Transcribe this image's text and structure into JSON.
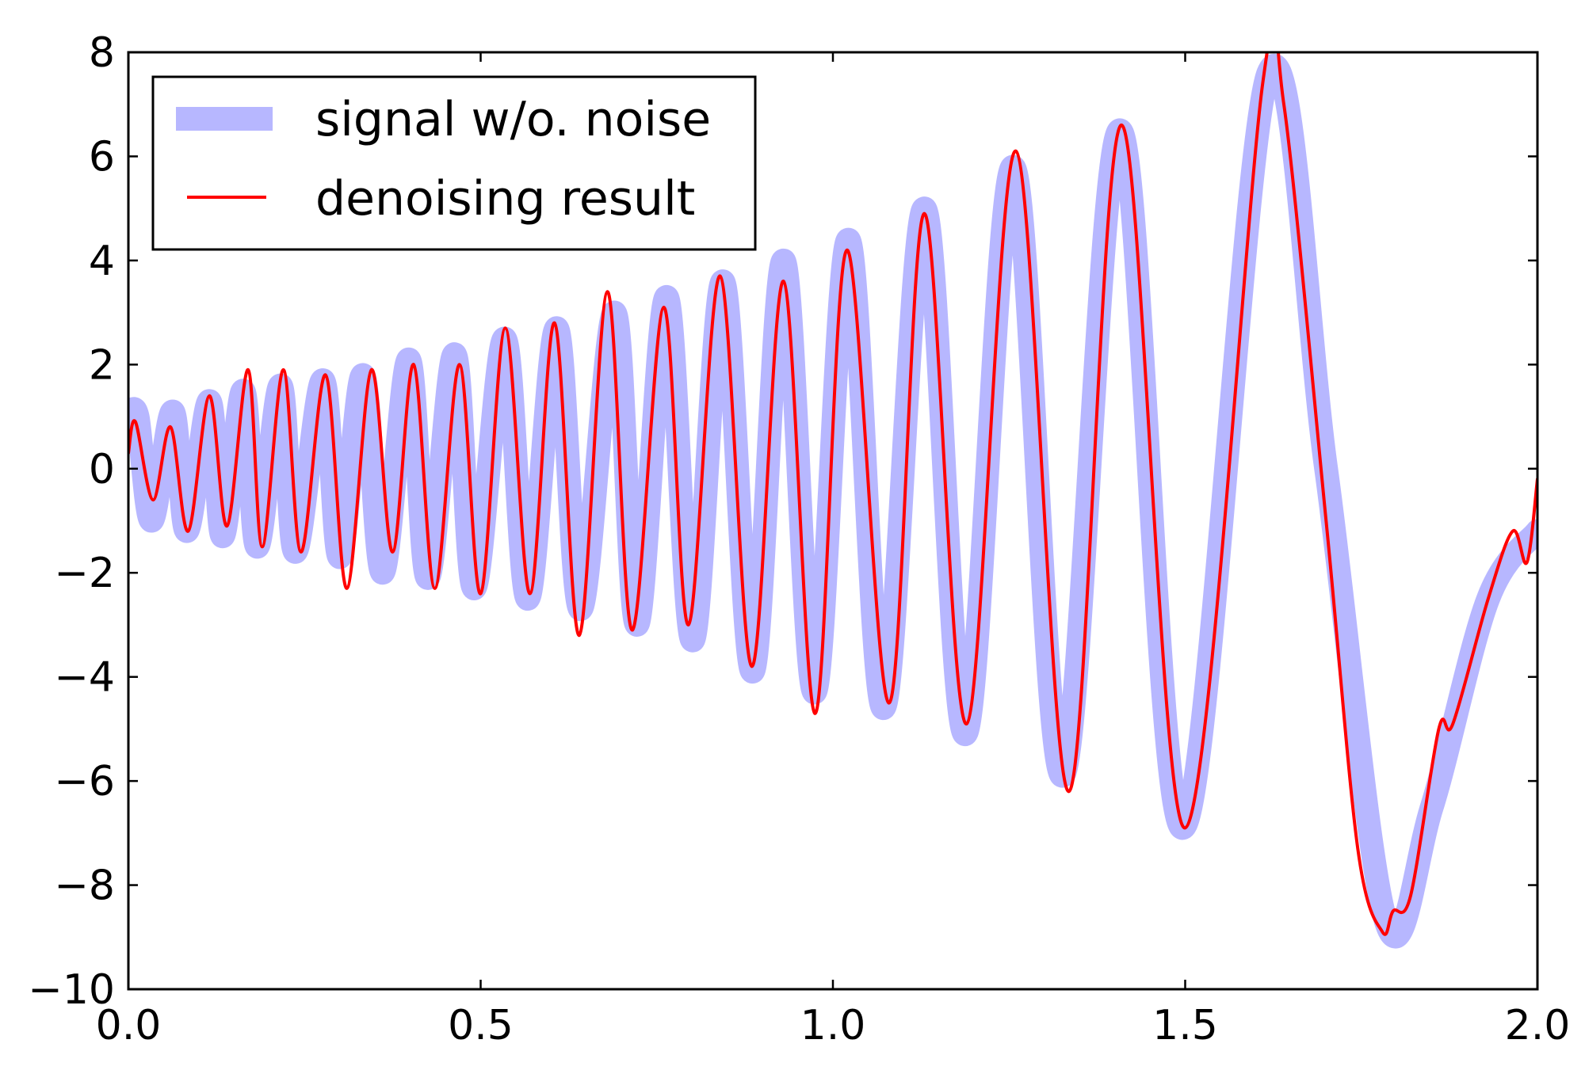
{
  "chart_data": {
    "type": "line",
    "title": "",
    "xlabel": "",
    "ylabel": "",
    "xlim": [
      0.0,
      2.0
    ],
    "ylim": [
      -10,
      8
    ],
    "x_ticks": [
      0.0,
      0.5,
      1.0,
      1.5,
      2.0
    ],
    "x_tick_labels": [
      "0.0",
      "0.5",
      "1.0",
      "1.5",
      "2.0"
    ],
    "y_ticks": [
      -10,
      -8,
      -6,
      -4,
      -2,
      0,
      2,
      4,
      6,
      8
    ],
    "y_tick_labels": [
      "−10",
      "−8",
      "−6",
      "−4",
      "−2",
      "0",
      "2",
      "4",
      "6",
      "8"
    ],
    "grid": false,
    "legend_position": "top-left",
    "series": [
      {
        "name": "signal w/o. noise",
        "color": "#aaaaff",
        "style": "thick-translucent",
        "x": [
          0.0,
          0.013,
          0.033,
          0.063,
          0.083,
          0.115,
          0.134,
          0.163,
          0.183,
          0.216,
          0.237,
          0.276,
          0.3,
          0.333,
          0.361,
          0.398,
          0.425,
          0.463,
          0.491,
          0.534,
          0.567,
          0.608,
          0.642,
          0.69,
          0.722,
          0.764,
          0.801,
          0.844,
          0.886,
          0.93,
          0.974,
          1.022,
          1.072,
          1.13,
          1.188,
          1.256,
          1.326,
          1.408,
          1.497,
          1.618,
          1.7,
          1.785,
          1.85,
          1.93,
          2.0
        ],
        "y": [
          1.0,
          1.0,
          -1.0,
          1.1,
          -1.2,
          1.3,
          -1.3,
          1.5,
          -1.5,
          1.6,
          -1.6,
          1.7,
          -1.7,
          1.8,
          -2.0,
          2.1,
          -2.1,
          2.2,
          -2.3,
          2.5,
          -2.5,
          2.7,
          -2.7,
          3.0,
          -3.0,
          3.3,
          -3.3,
          3.6,
          -3.9,
          4.0,
          -4.3,
          4.4,
          -4.6,
          5.0,
          -5.1,
          5.8,
          -5.9,
          6.5,
          -6.9,
          7.6,
          0.0,
          -8.7,
          -6.5,
          -2.5,
          -1.2
        ]
      },
      {
        "name": "denoising result",
        "color": "#ff0000",
        "style": "thin",
        "x": [
          0.0,
          0.01,
          0.035,
          0.06,
          0.085,
          0.115,
          0.14,
          0.17,
          0.19,
          0.22,
          0.245,
          0.28,
          0.31,
          0.345,
          0.375,
          0.405,
          0.435,
          0.47,
          0.5,
          0.535,
          0.57,
          0.605,
          0.64,
          0.68,
          0.715,
          0.76,
          0.795,
          0.84,
          0.885,
          0.93,
          0.975,
          1.02,
          1.08,
          1.13,
          1.19,
          1.26,
          1.335,
          1.41,
          1.5,
          1.61,
          1.64,
          1.7,
          1.745,
          1.78,
          1.795,
          1.82,
          1.86,
          1.88,
          1.93,
          1.965,
          1.985,
          2.0
        ],
        "y": [
          0.3,
          0.9,
          -0.6,
          0.8,
          -1.2,
          1.4,
          -1.1,
          1.9,
          -1.5,
          1.9,
          -1.6,
          1.8,
          -2.3,
          1.9,
          -1.6,
          2.0,
          -2.3,
          2.0,
          -2.4,
          2.7,
          -2.4,
          2.8,
          -3.2,
          3.4,
          -3.1,
          3.1,
          -3.0,
          3.7,
          -3.8,
          3.6,
          -4.7,
          4.2,
          -4.5,
          4.9,
          -4.9,
          6.1,
          -6.2,
          6.6,
          -6.9,
          7.4,
          7.0,
          -1.0,
          -7.3,
          -8.9,
          -8.5,
          -8.2,
          -5.0,
          -4.9,
          -2.5,
          -1.2,
          -1.8,
          -0.2
        ]
      }
    ]
  }
}
